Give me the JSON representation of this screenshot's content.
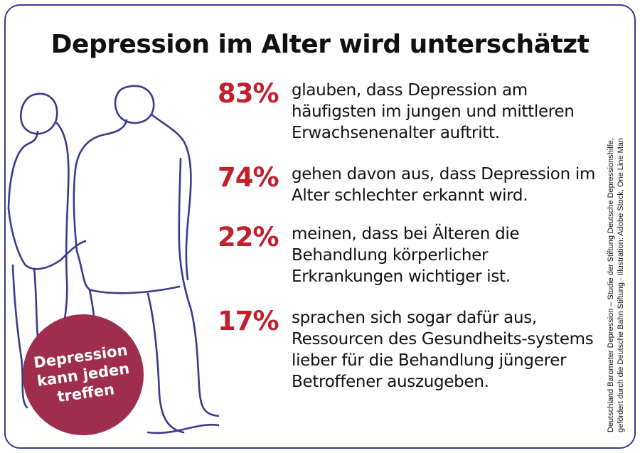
{
  "title": "Depression im Alter wird unterschätzt",
  "colors": {
    "accent_red": "#c0202c",
    "badge_bg": "#9e2d4e",
    "line_art": "#3a3a8c",
    "border": "#3a3a8c"
  },
  "stats": [
    {
      "percent": "83%",
      "text": "glauben, dass Depression am häufigsten im jungen und mittleren Erwachsenenalter auftritt."
    },
    {
      "percent": "74%",
      "text": "gehen davon aus, dass Depression im Alter schlechter erkannt wird."
    },
    {
      "percent": "22%",
      "text": "meinen, dass bei Älteren die Behandlung körperlicher Erkrankungen wichtiger ist."
    },
    {
      "percent": "17%",
      "text": "sprachen sich sogar dafür aus, Ressourcen des Gesundheits-systems lieber für die Behandlung jüngerer Betroffener auszugeben."
    }
  ],
  "badge": {
    "line1": "Depression",
    "line2": "kann jeden",
    "line3": "treffen"
  },
  "source": {
    "line1": "Deutschland Barometer Depression – Studie der Stiftung Deutsche Depressionshilfe,",
    "line2": "gefördert durch die Deutsche Bahn Stiftung · Illustration: Adobe Stock, One Line Man"
  },
  "illustration": {
    "icon": "elderly-couple-line-art"
  }
}
